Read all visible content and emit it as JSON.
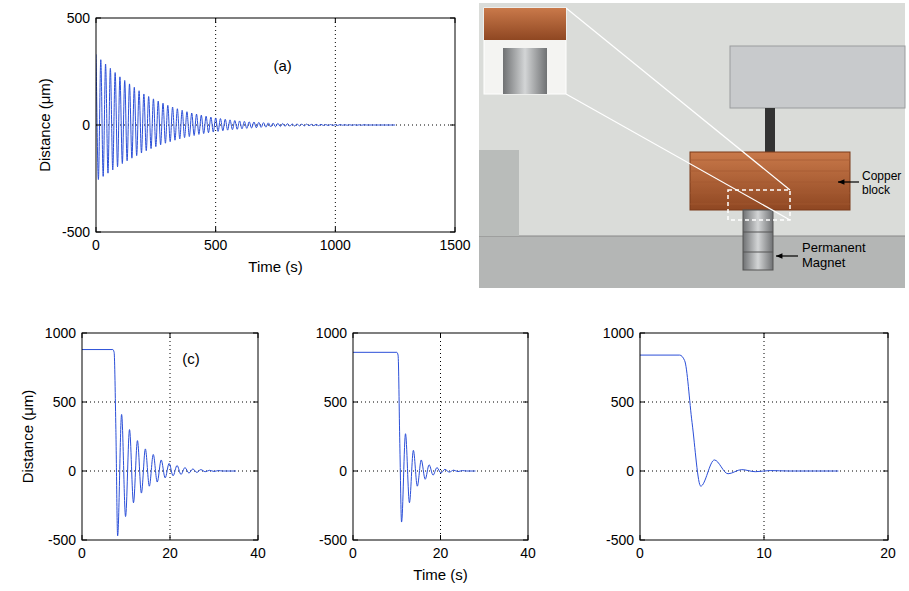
{
  "chart_data": [
    {
      "type": "line",
      "annotations": [
        "(a)"
      ],
      "x_label": "Time (s)",
      "y_label": "Distance (μm)",
      "xlim": [
        0,
        1500
      ],
      "ylim": [
        -500,
        500
      ],
      "xticks": [
        0,
        500,
        1000,
        1500
      ],
      "yticks": [
        -500,
        0,
        500
      ],
      "grid": true,
      "color": "#2b4fd8",
      "x": [
        0,
        10,
        20,
        30,
        40,
        50,
        60,
        70,
        80,
        90,
        100,
        110,
        120,
        130,
        140,
        150,
        160,
        170,
        180,
        190,
        200,
        210,
        220,
        230,
        240,
        250,
        260,
        270,
        280,
        290,
        300,
        310,
        320,
        330,
        340,
        350,
        360,
        370,
        380,
        390,
        400,
        410,
        420,
        430,
        440,
        450,
        460,
        470,
        480,
        490,
        500,
        510,
        520,
        530,
        540,
        550,
        560,
        570,
        580,
        590,
        600,
        610,
        620,
        630,
        640,
        650,
        660,
        670,
        680,
        690,
        700,
        710,
        720,
        730,
        740,
        750,
        760,
        770,
        780,
        790,
        800,
        810,
        820,
        830,
        840,
        850,
        860,
        870,
        880,
        890,
        900,
        910,
        920,
        930,
        940,
        950,
        960,
        970,
        980,
        990,
        1000,
        1010,
        1020,
        1030,
        1040,
        1050,
        1060,
        1070,
        1080,
        1090,
        1100,
        1110,
        1120,
        1130,
        1140,
        1150,
        1160,
        1170,
        1180,
        1190,
        1200,
        1210,
        1220,
        1230,
        1240,
        1250
      ],
      "values": [
        330,
        -255,
        305,
        -240,
        285,
        -225,
        265,
        -210,
        245,
        -195,
        225,
        -180,
        208,
        -167,
        192,
        -155,
        176,
        -143,
        160,
        -131,
        145,
        -120,
        133,
        -110,
        122,
        -101,
        112,
        -93,
        102,
        -85,
        92,
        -78,
        84,
        -71,
        76,
        -65,
        69,
        -59,
        62,
        -54,
        56,
        -49,
        51,
        -44,
        46,
        -40,
        41,
        -36,
        37,
        -33,
        33,
        -30,
        30,
        -27,
        27,
        -24,
        24,
        -22,
        21,
        -20,
        19,
        -18,
        17,
        -16,
        15,
        -14,
        14,
        -13,
        12,
        -11,
        11,
        -10,
        10,
        -9,
        9,
        -8,
        8,
        -7,
        7,
        -6,
        6,
        -5,
        5,
        -5,
        5,
        -4,
        4,
        -4,
        4,
        -3,
        3,
        -3,
        3,
        -3,
        3,
        -2,
        2,
        -2,
        2,
        -2,
        2,
        -2,
        2,
        -1,
        1,
        -1,
        1,
        -1,
        1,
        -1,
        1,
        -1,
        1,
        0,
        0,
        0,
        0,
        0,
        0,
        0,
        0,
        0,
        0,
        0,
        0,
        0
      ]
    },
    {
      "type": "line",
      "annotations": [
        "(c)"
      ],
      "y_label": "Distance (μm)",
      "xlim": [
        0,
        40
      ],
      "ylim": [
        -500,
        1000
      ],
      "xticks": [
        0,
        20,
        40
      ],
      "yticks": [
        -500,
        0,
        500,
        1000
      ],
      "grid": true,
      "color": "#2b4fd8",
      "x": [
        0,
        7,
        7.3,
        7.7,
        8.1,
        9.0,
        9.9,
        10.8,
        11.7,
        12.6,
        13.5,
        14.4,
        15.3,
        16.2,
        17.1,
        18.0,
        18.9,
        19.8,
        20.7,
        21.6,
        22.5,
        23.4,
        24.3,
        25.2,
        26.1,
        27,
        28,
        29,
        30,
        31,
        32,
        35
      ],
      "values": [
        880,
        880,
        860,
        300,
        -470,
        410,
        -330,
        300,
        -230,
        220,
        -160,
        160,
        -110,
        120,
        -80,
        80,
        -50,
        55,
        -35,
        40,
        -25,
        25,
        -15,
        15,
        -10,
        10,
        -5,
        5,
        -3,
        3,
        0,
        0
      ]
    },
    {
      "type": "line",
      "x_label": "Time (s)",
      "xlim": [
        0,
        40
      ],
      "ylim": [
        -500,
        1000
      ],
      "xticks": [
        0,
        20,
        40
      ],
      "yticks": [
        -500,
        0,
        500,
        1000
      ],
      "grid": true,
      "color": "#2b4fd8",
      "x": [
        0,
        10,
        10.3,
        10.7,
        11.1,
        12.0,
        12.9,
        13.8,
        14.7,
        15.6,
        16.5,
        17.4,
        18.3,
        19.2,
        20.1,
        21,
        22,
        23,
        24,
        25,
        26,
        28
      ],
      "values": [
        860,
        860,
        840,
        200,
        -370,
        270,
        -230,
        150,
        -110,
        80,
        -60,
        45,
        -30,
        25,
        -15,
        12,
        -8,
        6,
        -4,
        3,
        0,
        0
      ]
    },
    {
      "type": "line",
      "xlim": [
        0,
        20
      ],
      "ylim": [
        -500,
        1000
      ],
      "xticks": [
        0,
        10,
        20
      ],
      "yticks": [
        -500,
        0,
        500,
        1000
      ],
      "grid": true,
      "color": "#2b4fd8",
      "x": [
        0,
        3.2,
        3.6,
        4.2,
        4.9,
        6.0,
        7.1,
        8.2,
        9.3,
        10.5,
        12,
        16
      ],
      "values": [
        840,
        840,
        800,
        350,
        -110,
        80,
        -20,
        10,
        -5,
        3,
        0,
        0
      ]
    }
  ],
  "photo": {
    "labels": [
      "Copper block",
      "Permanent Magnet"
    ]
  }
}
